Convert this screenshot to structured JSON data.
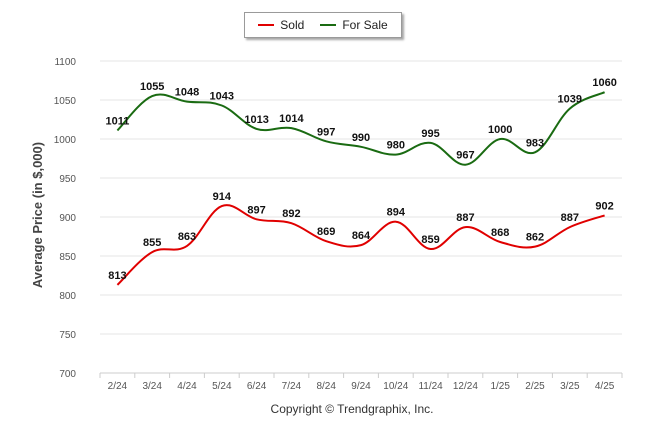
{
  "chart_data": {
    "type": "line",
    "categories": [
      "2/24",
      "3/24",
      "4/24",
      "5/24",
      "6/24",
      "7/24",
      "8/24",
      "9/24",
      "10/24",
      "11/24",
      "12/24",
      "1/25",
      "2/25",
      "3/25",
      "4/25"
    ],
    "series": [
      {
        "name": "Sold",
        "color": "#e00000",
        "values": [
          813,
          855,
          863,
          914,
          897,
          892,
          869,
          864,
          894,
          859,
          887,
          868,
          862,
          887,
          902
        ]
      },
      {
        "name": "For Sale",
        "color": "#1a6b12",
        "values": [
          1011,
          1055,
          1048,
          1043,
          1013,
          1014,
          997,
          990,
          980,
          995,
          967,
          1000,
          983,
          1039,
          1060
        ]
      }
    ],
    "ylabel": "Average Price (in $,000)",
    "xlabel": "",
    "ylim": [
      700,
      1100
    ],
    "yticks": [
      700,
      750,
      800,
      850,
      900,
      950,
      1000,
      1050,
      1100
    ],
    "grid": true,
    "legend_position": "top-center",
    "credit": "Copyright © Trendgraphix, Inc."
  }
}
